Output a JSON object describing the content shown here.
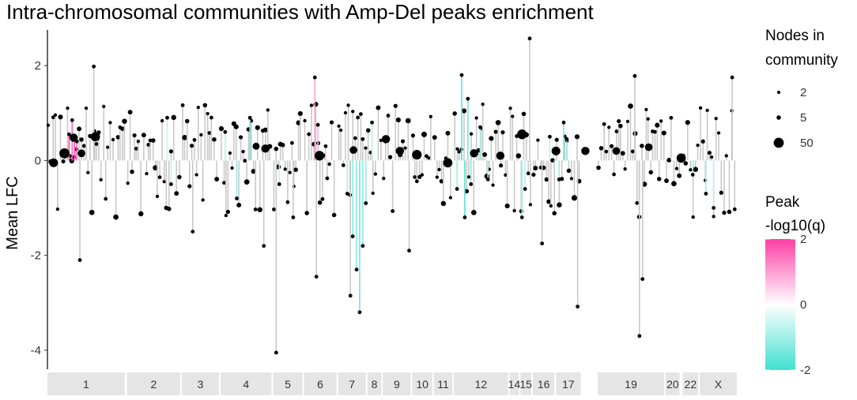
{
  "chart_data": {
    "type": "bar",
    "title": "Intra-chromosomal communities with Amp-Del peaks enrichment",
    "xlabel": "",
    "ylabel": "Mean LFC",
    "ylim": [
      -4.4,
      2.75
    ],
    "yticks": [
      2,
      0,
      -2,
      -4
    ],
    "chromosomes": [
      {
        "label": "1",
        "span": [
          0,
          100
        ]
      },
      {
        "label": "2",
        "span": [
          103,
          172
        ]
      },
      {
        "label": "3",
        "span": [
          174,
          222
        ]
      },
      {
        "label": "4",
        "span": [
          224,
          290
        ]
      },
      {
        "label": "5",
        "span": [
          292,
          330
        ]
      },
      {
        "label": "6",
        "span": [
          332,
          374
        ]
      },
      {
        "label": "7",
        "span": [
          376,
          412
        ]
      },
      {
        "label": "8",
        "span": [
          414,
          432
        ]
      },
      {
        "label": "9",
        "span": [
          434,
          470
        ]
      },
      {
        "label": "10",
        "span": [
          472,
          498
        ]
      },
      {
        "label": "11",
        "span": [
          500,
          524
        ]
      },
      {
        "label": "12",
        "span": [
          526,
          596
        ]
      },
      {
        "label": "14",
        "span": [
          598,
          610
        ]
      },
      {
        "label": "15",
        "span": [
          612,
          626
        ]
      },
      {
        "label": "16",
        "span": [
          628,
          656
        ]
      },
      {
        "label": "17",
        "span": [
          658,
          690
        ]
      },
      {
        "label": "19",
        "span": [
          712,
          798
        ]
      },
      {
        "label": "20",
        "span": [
          800,
          818
        ]
      },
      {
        "label": "22",
        "span": [
          822,
          842
        ]
      },
      {
        "label": "X",
        "span": [
          844,
          892
        ]
      }
    ],
    "highlighted_communities": [
      {
        "x": 28,
        "value": 0.55,
        "q": 1.9
      },
      {
        "x": 32,
        "value": 0.85,
        "q": 1.6
      },
      {
        "x": 35,
        "value": 0.48,
        "q": 1.8
      },
      {
        "x": 38,
        "value": 0.4,
        "q": 1.5
      },
      {
        "x": 346,
        "value": 1.75,
        "q": 0.9
      },
      {
        "x": 350,
        "value": 0.75,
        "q": 0.7
      },
      {
        "x": 360,
        "value": 0.3,
        "q": 0.6
      },
      {
        "x": 155,
        "value": 0.9,
        "q": -0.6
      },
      {
        "x": 160,
        "value": -0.5,
        "q": -0.5
      },
      {
        "x": 230,
        "value": 0.6,
        "q": -0.7
      },
      {
        "x": 245,
        "value": -0.8,
        "q": -1.1
      },
      {
        "x": 262,
        "value": 0.9,
        "q": -1.5
      },
      {
        "x": 300,
        "value": -0.5,
        "q": -0.6
      },
      {
        "x": 388,
        "value": -0.7,
        "q": -0.9
      },
      {
        "x": 395,
        "value": -1.6,
        "q": -1.2
      },
      {
        "x": 400,
        "value": -2.3,
        "q": -1.3
      },
      {
        "x": 404,
        "value": -3.2,
        "q": -1.5
      },
      {
        "x": 408,
        "value": -1.8,
        "q": -1.2
      },
      {
        "x": 412,
        "value": -0.9,
        "q": -1.0
      },
      {
        "x": 420,
        "value": 0.8,
        "q": -0.7
      },
      {
        "x": 530,
        "value": -0.6,
        "q": -1.0
      },
      {
        "x": 536,
        "value": 1.8,
        "q": -1.7
      },
      {
        "x": 540,
        "value": -1.2,
        "q": -1.8
      },
      {
        "x": 544,
        "value": 1.3,
        "q": -1.5
      },
      {
        "x": 548,
        "value": -0.5,
        "q": -1.2
      },
      {
        "x": 560,
        "value": 0.7,
        "q": -0.8
      },
      {
        "x": 570,
        "value": -0.4,
        "q": -0.6
      },
      {
        "x": 614,
        "value": -1.2,
        "q": -0.9
      },
      {
        "x": 618,
        "value": -0.6,
        "q": -0.7
      },
      {
        "x": 650,
        "value": 0.5,
        "q": -0.7
      },
      {
        "x": 662,
        "value": -0.4,
        "q": -0.9
      },
      {
        "x": 668,
        "value": 0.8,
        "q": -1.4
      },
      {
        "x": 672,
        "value": 0.45,
        "q": -1.1
      },
      {
        "x": 835,
        "value": -0.3,
        "q": -0.8
      },
      {
        "x": 852,
        "value": -0.7,
        "q": -0.9
      },
      {
        "x": 862,
        "value": -1.0,
        "q": -0.7
      }
    ],
    "extreme_communities": [
      {
        "x": 42,
        "value": -2.1
      },
      {
        "x": 60,
        "value": 1.98
      },
      {
        "x": 188,
        "value": -1.5
      },
      {
        "x": 280,
        "value": -1.8
      },
      {
        "x": 296,
        "value": -4.05
      },
      {
        "x": 318,
        "value": -1.2
      },
      {
        "x": 348,
        "value": -2.45
      },
      {
        "x": 392,
        "value": -2.85
      },
      {
        "x": 468,
        "value": -1.9
      },
      {
        "x": 624,
        "value": 2.57
      },
      {
        "x": 640,
        "value": -1.75
      },
      {
        "x": 686,
        "value": -3.08
      },
      {
        "x": 766,
        "value": -3.7
      },
      {
        "x": 770,
        "value": -2.5
      },
      {
        "x": 760,
        "value": 1.78
      },
      {
        "x": 886,
        "value": 1.75
      }
    ],
    "large_communities": [
      {
        "x": 8,
        "value": -0.05,
        "nodes": 35
      },
      {
        "x": 22,
        "value": 0.15,
        "nodes": 50
      },
      {
        "x": 34,
        "value": 0.48,
        "nodes": 30
      },
      {
        "x": 44,
        "value": 0.15,
        "nodes": 25
      },
      {
        "x": 62,
        "value": 0.5,
        "nodes": 40
      },
      {
        "x": 270,
        "value": 0.3,
        "nodes": 20
      },
      {
        "x": 282,
        "value": 0.25,
        "nodes": 30
      },
      {
        "x": 352,
        "value": 0.1,
        "nodes": 45
      },
      {
        "x": 396,
        "value": 0.22,
        "nodes": 25
      },
      {
        "x": 438,
        "value": 0.45,
        "nodes": 30
      },
      {
        "x": 456,
        "value": 0.2,
        "nodes": 30
      },
      {
        "x": 478,
        "value": 0.12,
        "nodes": 45
      },
      {
        "x": 518,
        "value": -0.05,
        "nodes": 40
      },
      {
        "x": 552,
        "value": 0.15,
        "nodes": 30
      },
      {
        "x": 586,
        "value": 0.1,
        "nodes": 30
      },
      {
        "x": 614,
        "value": 0.55,
        "nodes": 45
      },
      {
        "x": 658,
        "value": 0.2,
        "nodes": 35
      },
      {
        "x": 696,
        "value": 0.2,
        "nodes": 30
      },
      {
        "x": 736,
        "value": 0.2,
        "nodes": 25
      },
      {
        "x": 778,
        "value": 0.28,
        "nodes": 25
      },
      {
        "x": 820,
        "value": 0.05,
        "nodes": 40
      }
    ],
    "legend_size": {
      "title": [
        "Nodes in",
        "community"
      ],
      "entries": [
        {
          "label": "2",
          "nodes": 2
        },
        {
          "label": "5",
          "nodes": 5
        },
        {
          "label": "50",
          "nodes": 50
        }
      ]
    },
    "legend_color": {
      "title": [
        "Peak",
        "-log10(q)"
      ],
      "range": [
        -2,
        2
      ],
      "ticks": [
        {
          "label": "2",
          "value": 2
        },
        {
          "label": "0",
          "value": 0
        },
        {
          "label": "-2",
          "value": -2
        }
      ],
      "high_color": "#ff3ea5",
      "mid_color": "#ffffff",
      "low_color": "#40e0d0"
    },
    "bar_color": "#c8c8c8",
    "point_color": "#000000",
    "strip_color": "#e5e5e5"
  }
}
